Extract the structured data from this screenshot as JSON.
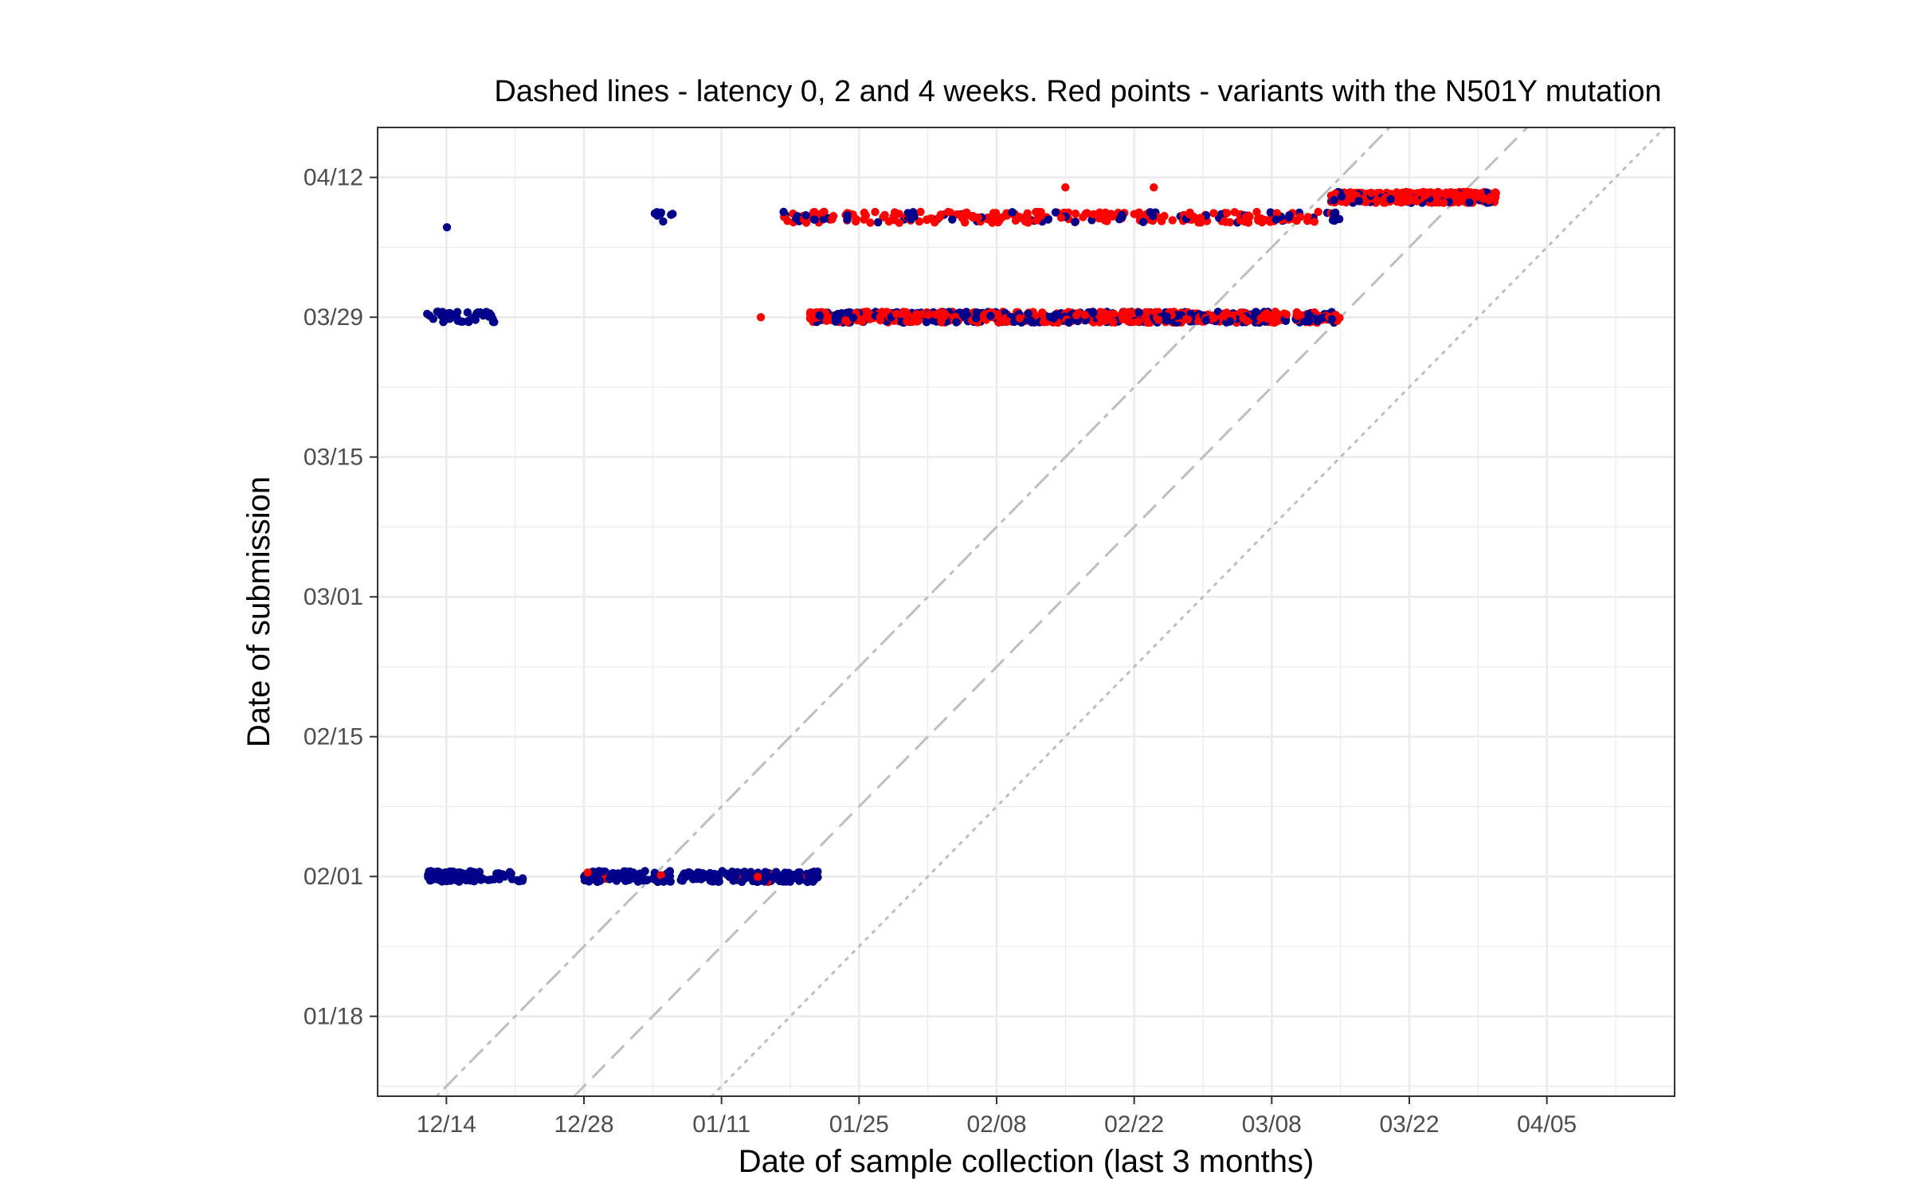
{
  "chart_data": {
    "type": "scatter",
    "title": "Dashed lines - latency 0, 2 and 4 weeks. Red points - variants with the N501Y mutation",
    "xlabel": "Date of sample collection (last 3 months)",
    "ylabel": "Date of submission",
    "x_ticks": [
      "12/14",
      "12/28",
      "01/11",
      "01/25",
      "02/08",
      "02/22",
      "03/08",
      "03/22",
      "04/05"
    ],
    "y_ticks": [
      "01/18",
      "02/01",
      "02/15",
      "03/01",
      "03/15",
      "03/29",
      "04/12"
    ],
    "xlim": [
      "12/07",
      "04/18"
    ],
    "ylim": [
      "01/10",
      "04/17"
    ],
    "grid": true,
    "colors": {
      "default": "#00008b",
      "n501y": "#ff0000",
      "reference_lines": "#bebebe",
      "grid": "#ebebeb"
    },
    "reference_lines": [
      {
        "latency_weeks": 0,
        "style": "dotted"
      },
      {
        "latency_weeks": 2,
        "style": "dashed"
      },
      {
        "latency_weeks": 4,
        "style": "dotdash"
      }
    ],
    "series": [],
    "clusters": [
      {
        "submission": "02/01",
        "collection_from": "12/12",
        "collection_to": "12/16",
        "count": 70,
        "n501y_share": 0.0
      },
      {
        "submission": "02/01",
        "collection_from": "12/17",
        "collection_to": "12/21",
        "count": 25,
        "n501y_share": 0.0
      },
      {
        "submission": "02/01",
        "collection_from": "12/28",
        "collection_to": "01/20",
        "count": 240,
        "n501y_share": 0.04
      },
      {
        "submission": "03/29",
        "collection_from": "12/12",
        "collection_to": "12/18",
        "count": 40,
        "n501y_share": 0.0
      },
      {
        "submission": "03/29",
        "collection_from": "01/20",
        "collection_to": "03/14",
        "count": 900,
        "n501y_share": 0.6
      },
      {
        "submission": "04/07",
        "collection_from": "12/14",
        "collection_to": "12/15",
        "count": 1,
        "n501y_share": 0.0
      },
      {
        "submission": "04/08",
        "collection_from": "01/04",
        "collection_to": "01/09",
        "count": 8,
        "n501y_share": 0.0
      },
      {
        "submission": "04/08",
        "collection_from": "01/17",
        "collection_to": "03/14",
        "count": 280,
        "n501y_share": 0.7
      },
      {
        "submission": "04/10",
        "collection_from": "03/14",
        "collection_to": "03/30",
        "count": 380,
        "n501y_share": 0.85
      }
    ],
    "points": [
      {
        "x": "01/15",
        "y": "03/29",
        "n501y": true
      },
      {
        "x": "02/15",
        "y": "04/11",
        "n501y": true
      },
      {
        "x": "02/24",
        "y": "04/11",
        "n501y": true
      }
    ]
  }
}
